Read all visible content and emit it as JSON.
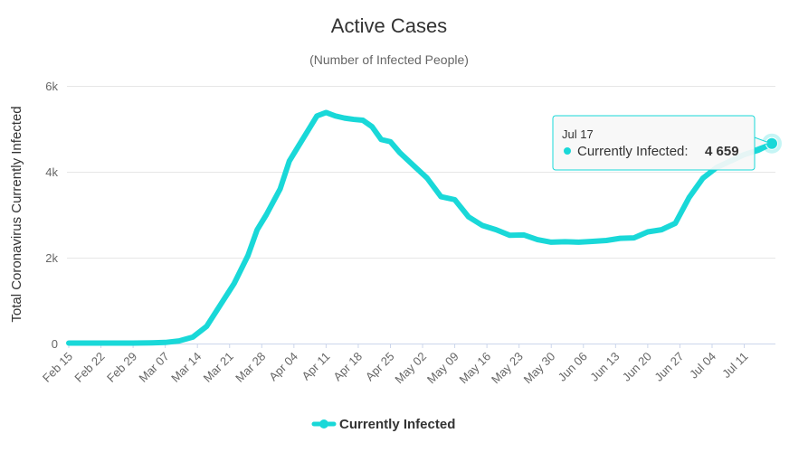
{
  "chart_data": {
    "type": "line",
    "title": "Active Cases",
    "subtitle": "(Number of Infected People)",
    "ylabel": "Total Coronavirus Currently Infected",
    "xlabel": "",
    "ylim": [
      0,
      6000
    ],
    "yticks": [
      {
        "value": 0,
        "label": "0"
      },
      {
        "value": 2000,
        "label": "2k"
      },
      {
        "value": 4000,
        "label": "4k"
      },
      {
        "value": 6000,
        "label": "6k"
      }
    ],
    "x_start": "Feb 15",
    "x_end": "Jul 17",
    "xticks": [
      "Feb 15",
      "Feb 22",
      "Feb 29",
      "Mar 07",
      "Mar 14",
      "Mar 21",
      "Mar 28",
      "Apr 04",
      "Apr 11",
      "Apr 18",
      "Apr 25",
      "May 02",
      "May 09",
      "May 16",
      "May 23",
      "May 30",
      "Jun 06",
      "Jun 13",
      "Jun 20",
      "Jun 27",
      "Jul 04",
      "Jul 11"
    ],
    "grid": true,
    "legend_position": "bottom-center",
    "series": [
      {
        "name": "Currently Infected",
        "color": "#19d8d8",
        "x": [
          "Feb 15",
          "Feb 22",
          "Feb 29",
          "Mar 04",
          "Mar 07",
          "Mar 10",
          "Mar 13",
          "Mar 16",
          "Mar 19",
          "Mar 22",
          "Mar 25",
          "Mar 27",
          "Mar 29",
          "Apr 01",
          "Apr 03",
          "Apr 05",
          "Apr 07",
          "Apr 09",
          "Apr 11",
          "Apr 13",
          "Apr 15",
          "Apr 17",
          "Apr 19",
          "Apr 21",
          "Apr 23",
          "Apr 25",
          "Apr 27",
          "Apr 30",
          "May 03",
          "May 06",
          "May 09",
          "May 12",
          "May 15",
          "May 18",
          "May 21",
          "May 24",
          "May 27",
          "May 30",
          "Jun 02",
          "Jun 05",
          "Jun 08",
          "Jun 11",
          "Jun 14",
          "Jun 17",
          "Jun 20",
          "Jun 23",
          "Jun 26",
          "Jun 29",
          "Jul 02",
          "Jul 05",
          "Jul 08",
          "Jul 11",
          "Jul 14",
          "Jul 17"
        ],
        "values": [
          10,
          10,
          10,
          15,
          25,
          60,
          150,
          400,
          900,
          1400,
          2050,
          2650,
          3000,
          3600,
          4250,
          4600,
          4950,
          5300,
          5380,
          5300,
          5250,
          5220,
          5200,
          5050,
          4750,
          4700,
          4450,
          4150,
          3850,
          3420,
          3350,
          2950,
          2750,
          2650,
          2520,
          2530,
          2420,
          2360,
          2370,
          2360,
          2380,
          2400,
          2450,
          2460,
          2600,
          2650,
          2800,
          3400,
          3850,
          4100,
          4250,
          4400,
          4500,
          4659
        ]
      }
    ],
    "tooltip": {
      "date": "Jul 17",
      "series_name": "Currently Infected:",
      "value": "4 659"
    },
    "legend": [
      {
        "label": "Currently Infected",
        "color": "#19d8d8"
      }
    ]
  }
}
